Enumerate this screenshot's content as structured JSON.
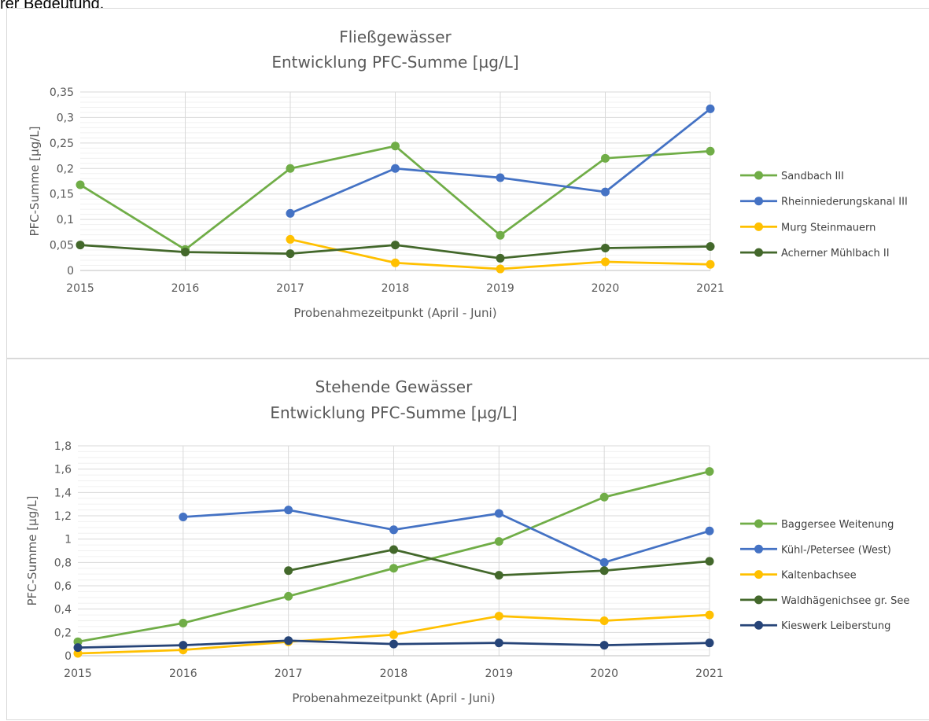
{
  "page": {
    "top_text": "rer Bedeutung."
  },
  "chart_data": [
    {
      "type": "line",
      "title": "Fließgewässer",
      "subtitle": "Entwicklung PFC-Summe [µg/L]",
      "xlabel": "Probenahmezeitpunkt (April - Juni)",
      "ylabel": "PFC-Summe [µg/L]",
      "x": [
        2015,
        2016,
        2017,
        2018,
        2019,
        2020,
        2021
      ],
      "xlim": [
        2015,
        2021
      ],
      "ylim": [
        0,
        0.35
      ],
      "ystep": 0.05,
      "yminor": 0.01,
      "ytick_labels": [
        "0",
        "0,05",
        "0,1",
        "0,15",
        "0,2",
        "0,25",
        "0,3",
        "0,35"
      ],
      "grid": true,
      "legend": "right",
      "series": [
        {
          "name": "Sandbach III",
          "color": "#70ad47",
          "values": [
            0.168,
            0.041,
            0.2,
            0.244,
            0.069,
            0.22,
            0.234
          ]
        },
        {
          "name": "Rheinniederungskanal III",
          "color": "#4472c4",
          "values": [
            null,
            null,
            0.112,
            0.2,
            0.182,
            0.154,
            0.317
          ]
        },
        {
          "name": "Murg Steinmauern",
          "color": "#ffc000",
          "values": [
            null,
            null,
            0.061,
            0.015,
            0.003,
            0.017,
            0.012
          ]
        },
        {
          "name": "Acherner Mühlbach II",
          "color": "#43682b",
          "values": [
            0.05,
            0.036,
            0.033,
            0.05,
            0.024,
            0.044,
            0.047
          ]
        }
      ]
    },
    {
      "type": "line",
      "title": "Stehende Gewässer",
      "subtitle": "Entwicklung PFC-Summe [µg/L]",
      "xlabel": "Probenahmezeitpunkt (April - Juni)",
      "ylabel": "PFC-Summe [µg/L]",
      "x": [
        2015,
        2016,
        2017,
        2018,
        2019,
        2020,
        2021
      ],
      "xlim": [
        2015,
        2021
      ],
      "ylim": [
        0,
        1.8
      ],
      "ystep": 0.2,
      "yminor": 0.05,
      "ytick_labels": [
        "0",
        "0,2",
        "0,4",
        "0,6",
        "0,8",
        "1",
        "1,2",
        "1,4",
        "1,6",
        "1,8"
      ],
      "grid": true,
      "legend": "right",
      "series": [
        {
          "name": "Baggersee Weitenung",
          "color": "#70ad47",
          "values": [
            0.12,
            0.28,
            0.51,
            0.75,
            0.98,
            1.36,
            1.58
          ]
        },
        {
          "name": "Kühl-/Petersee (West)",
          "color": "#4472c4",
          "values": [
            null,
            1.19,
            1.25,
            1.08,
            1.22,
            0.8,
            1.07
          ]
        },
        {
          "name": "Kaltenbachsee",
          "color": "#ffc000",
          "values": [
            0.02,
            0.05,
            0.12,
            0.18,
            0.34,
            0.3,
            0.35
          ]
        },
        {
          "name": "Waldhägenichsee gr. See",
          "color": "#43682b",
          "values": [
            null,
            null,
            0.73,
            0.91,
            0.69,
            0.73,
            0.81
          ]
        },
        {
          "name": "Kieswerk Leiberstung",
          "color": "#264478",
          "values": [
            0.07,
            0.09,
            0.13,
            0.1,
            0.11,
            0.09,
            0.11
          ]
        }
      ]
    }
  ]
}
